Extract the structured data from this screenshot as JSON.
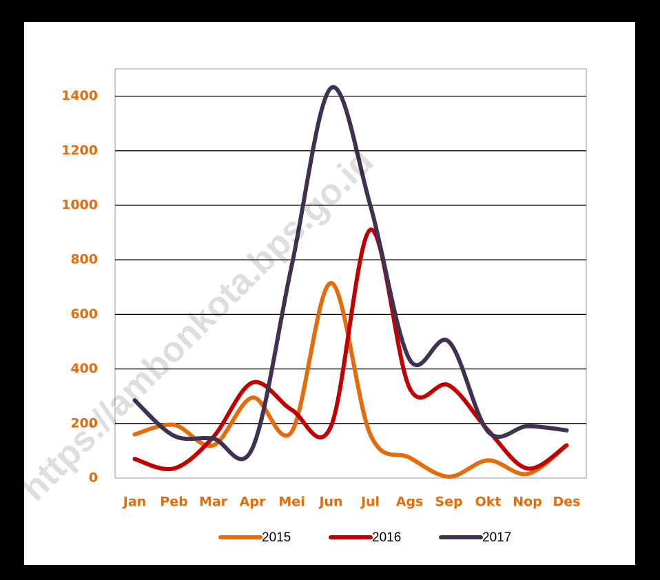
{
  "chart_data": {
    "type": "line",
    "smooth": true,
    "watermark": "https://ambonkota.bps.go.id",
    "categories": [
      "Jan",
      "Peb",
      "Mar",
      "Apr",
      "Mei",
      "Jun",
      "Jul",
      "Ags",
      "Sep",
      "Okt",
      "Nop",
      "Des"
    ],
    "series": [
      {
        "name": "2015",
        "color": "#e46c0a",
        "values": [
          160,
          195,
          120,
          295,
          170,
          715,
          160,
          75,
          5,
          65,
          15,
          120
        ]
      },
      {
        "name": "2016",
        "color": "#c00000",
        "values": [
          70,
          35,
          150,
          350,
          250,
          190,
          910,
          330,
          340,
          175,
          35,
          120
        ]
      },
      {
        "name": "2017",
        "color": "#403152",
        "values": [
          285,
          155,
          145,
          110,
          780,
          1430,
          1000,
          435,
          500,
          170,
          190,
          175
        ]
      }
    ],
    "ylim": [
      0,
      1500
    ],
    "yticks": [
      0,
      200,
      400,
      600,
      800,
      1000,
      1200,
      1400
    ],
    "grid": true,
    "legend": "bottom"
  }
}
